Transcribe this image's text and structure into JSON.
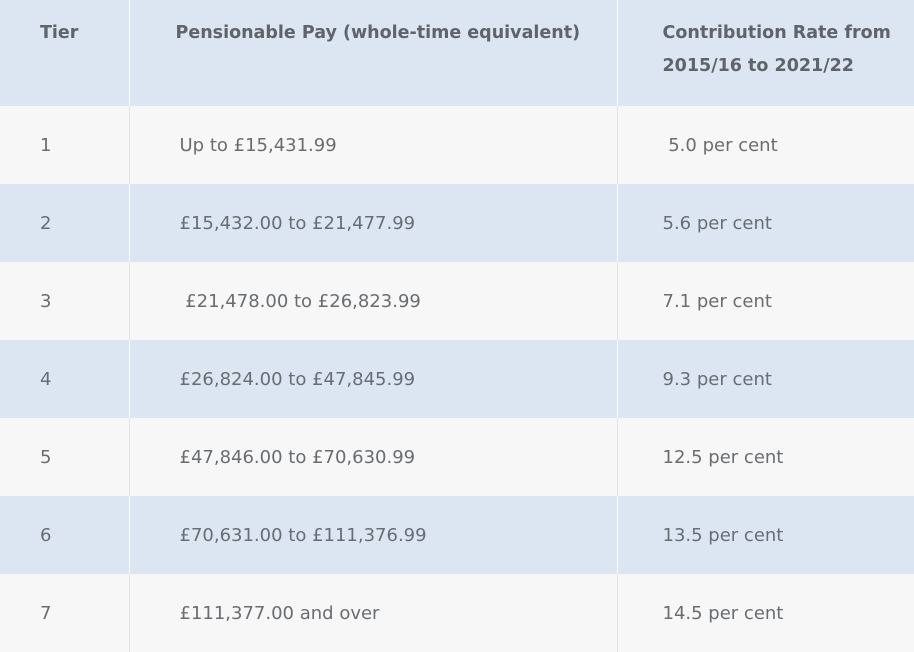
{
  "table": {
    "headers": {
      "tier": "Tier",
      "pay": "Pensionable Pay (whole-time equivalent)",
      "rate": "Contribution Rate from 2015/16 to 2021/22"
    },
    "rows": [
      {
        "tier": "1",
        "pay": "Up to £15,431.99",
        "rate": " 5.0 per cent"
      },
      {
        "tier": "2",
        "pay": "£15,432.00 to £21,477.99",
        "rate": "5.6 per cent"
      },
      {
        "tier": "3",
        "pay": " £21,478.00 to £26,823.99",
        "rate": "7.1 per cent"
      },
      {
        "tier": "4",
        "pay": "£26,824.00 to £47,845.99",
        "rate": "9.3 per cent"
      },
      {
        "tier": "5",
        "pay": "£47,846.00 to £70,630.99",
        "rate": "12.5 per cent"
      },
      {
        "tier": "6",
        "pay": "£70,631.00 to £111,376.99",
        "rate": "13.5 per cent"
      },
      {
        "tier": "7",
        "pay": "£111,377.00 and over",
        "rate": "14.5 per cent"
      }
    ]
  }
}
